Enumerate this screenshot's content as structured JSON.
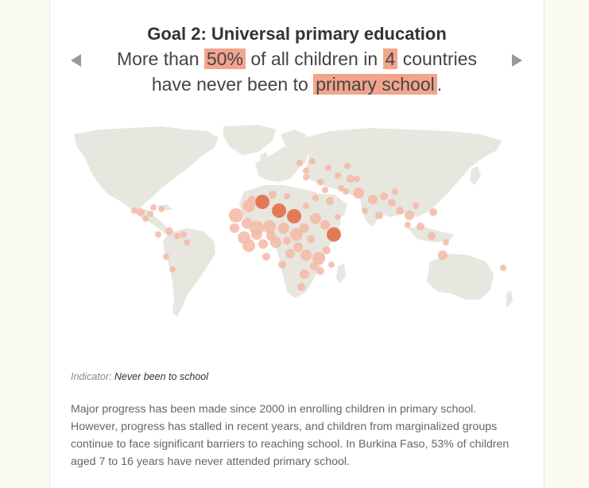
{
  "goal_title": "Goal 2: Universal primary education",
  "headline": {
    "part1": "More than ",
    "highlight1": "50%",
    "part2": " of all children in ",
    "highlight2": "4",
    "part3": " countries",
    "part4": "have never been to ",
    "highlight3": "primary school",
    "part5": "."
  },
  "indicator": {
    "label": "Indicator:",
    "value": "Never been to school"
  },
  "description": "Major progress has been made since 2000 in enrolling children in primary school. However, progress has stalled in recent years, and children from marginalized groups continue to face significant barriers to reaching school. In Burkina Faso, 53% of children aged 7 to 16 years have never attended primary school.",
  "colors": {
    "land": "#e7e6df",
    "bubble_light": "#f4b9a5",
    "bubble_dark": "#e3744f",
    "highlight": "#f2a58c"
  },
  "icons": {
    "prev": "triangle-left-icon",
    "next": "triangle-right-icon"
  }
}
